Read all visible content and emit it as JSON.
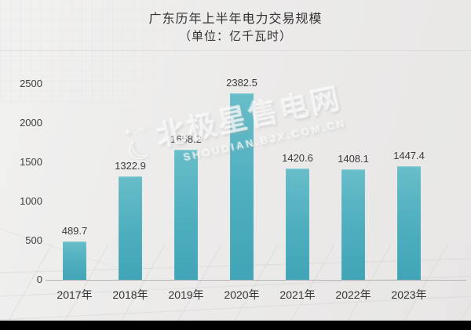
{
  "chart_data": {
    "type": "bar",
    "title": "广东历年上半年电力交易规模",
    "subtitle": "（单位：亿千瓦时）",
    "categories": [
      "2017年",
      "2018年",
      "2019年",
      "2020年",
      "2021年",
      "2022年",
      "2023年"
    ],
    "values": [
      489.7,
      1322.9,
      1658.2,
      2382.5,
      1420.6,
      1408.1,
      1447.4
    ],
    "xlabel": "",
    "ylabel": "",
    "ylim": [
      0,
      2500
    ],
    "yticks": [
      0,
      500,
      1000,
      1500,
      2000,
      2500
    ],
    "grid": "perspective floor backdrop, no plot gridlines",
    "legend": "none",
    "bar_color_top": "#68bdc9",
    "bar_color_bottom": "#41a5b7",
    "label_color": "#3a3a3a"
  },
  "watermark": {
    "brand": "北极星售电网",
    "url": "SHOUDIAN.BJX.COM.CN"
  }
}
